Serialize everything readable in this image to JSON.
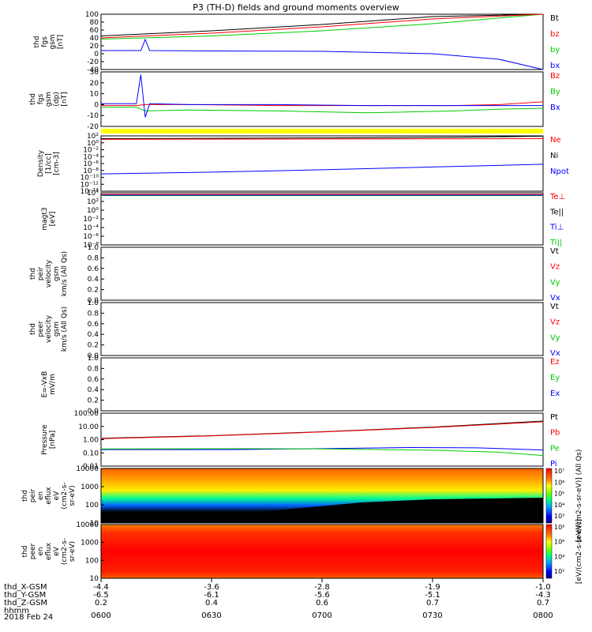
{
  "title": "P3 (TH-D) fields and ground moments overview",
  "date_label": "2018 Feb 24",
  "colors": {
    "black": "#000000",
    "red": "#ff0000",
    "green": "#00cc00",
    "blue": "#0000ff",
    "yellow": "#ffff00"
  },
  "time_axis": {
    "ticks": [
      "0600",
      "0630",
      "0700",
      "0730",
      "0800"
    ],
    "ephemeris_rows": [
      {
        "label": "thd_X-GSM",
        "values": [
          "-4.4",
          "-3.6",
          "-2.8",
          "-1.9",
          "-1.0"
        ]
      },
      {
        "label": "thd_Y-GSM",
        "values": [
          "-6.5",
          "-6.1",
          "-5.6",
          "-5.1",
          "-4.3"
        ]
      },
      {
        "label": "thd_Z-GSM",
        "values": [
          "0.2",
          "0.4",
          "0.6",
          "0.7",
          "0.7"
        ]
      },
      {
        "label": "hhmm",
        "values": []
      }
    ]
  },
  "chart_data": [
    {
      "type": "line",
      "ylabel": [
        "thd",
        "fgs",
        "gsm",
        "[nT]"
      ],
      "ticks": [
        "100",
        "80",
        "60",
        "40",
        "20",
        "0",
        "-20",
        "-40"
      ],
      "ylim": [
        -40,
        100
      ],
      "legend": [
        {
          "label": "Bt",
          "color": "#000000"
        },
        {
          "label": "bz",
          "color": "#ff0000"
        },
        {
          "label": "by",
          "color": "#00cc00"
        },
        {
          "label": "bx",
          "color": "#0000ff"
        }
      ],
      "series": [
        {
          "name": "Bt",
          "color": "#000000",
          "x": [
            0,
            0.25,
            0.5,
            0.75,
            1
          ],
          "values": [
            45,
            58,
            74,
            94,
            118
          ]
        },
        {
          "name": "by",
          "color": "#00cc00",
          "x": [
            0,
            0.25,
            0.5,
            0.75,
            1
          ],
          "values": [
            37,
            45,
            58,
            76,
            100
          ]
        },
        {
          "name": "bz",
          "color": "#ff0000",
          "x": [
            0,
            0.25,
            0.5,
            0.75,
            1
          ],
          "values": [
            40,
            52,
            68,
            88,
            112
          ]
        },
        {
          "name": "bx",
          "color": "#0000ff",
          "x": [
            0,
            0.09,
            0.1,
            0.11,
            0.25,
            0.5,
            0.75,
            0.9,
            1
          ],
          "values": [
            8,
            8,
            36,
            8,
            7,
            6,
            0,
            -14,
            -40
          ]
        }
      ]
    },
    {
      "type": "line",
      "ylabel": [
        "thd",
        "fgs",
        "gsm",
        "(dp)",
        "[nT]"
      ],
      "ticks": [
        "30",
        "20",
        "10",
        "0",
        "-10",
        "-20"
      ],
      "ylim": [
        -25,
        35
      ],
      "legend": [
        {
          "label": "Bz",
          "color": "#ff0000"
        },
        {
          "label": "By",
          "color": "#00cc00"
        },
        {
          "label": "Bx",
          "color": "#0000ff"
        }
      ],
      "series": [
        {
          "name": "By",
          "color": "#00cc00",
          "x": [
            0,
            0.08,
            0.1,
            0.2,
            0.4,
            0.6,
            0.8,
            0.9,
            1
          ],
          "values": [
            -4,
            -4,
            -8,
            -7,
            -8,
            -10,
            -8,
            -6,
            -5
          ]
        },
        {
          "name": "Bz",
          "color": "#ff0000",
          "x": [
            0,
            0.08,
            0.1,
            0.2,
            0.4,
            0.6,
            0.8,
            0.9,
            1
          ],
          "values": [
            -2,
            -2,
            -1,
            -1,
            -2,
            -2,
            -2,
            -1,
            2
          ]
        },
        {
          "name": "Bx",
          "color": "#0000ff",
          "x": [
            0,
            0.08,
            0.09,
            0.1,
            0.11,
            0.2,
            0.4,
            0.6,
            0.8,
            1
          ],
          "values": [
            0,
            0,
            32,
            -15,
            0,
            -1,
            -1,
            -2,
            -2,
            -2
          ]
        }
      ]
    },
    {
      "type": "line",
      "ylabel": [
        "Density",
        "[1/cc]",
        "[cm-3]"
      ],
      "ticks": [
        "10²",
        "10⁰",
        "10⁻²",
        "10⁻⁴",
        "10⁻⁶",
        "10⁻⁸",
        "10⁻¹⁰",
        "10⁻¹²",
        "10⁻¹⁴"
      ],
      "log": true,
      "ylim": [
        -14,
        2
      ],
      "legend": [
        {
          "label": "Ne",
          "color": "#ff0000"
        },
        {
          "label": "Ni",
          "color": "#000000"
        },
        {
          "label": "Npot",
          "color": "#0000ff"
        }
      ],
      "series": [
        {
          "name": "Ni",
          "color": "#000000",
          "x": [
            0,
            0.5,
            0.8,
            1
          ],
          "values": [
            1.2,
            1.4,
            1.6,
            1.9
          ]
        },
        {
          "name": "Ne",
          "color": "#ff0000",
          "x": [
            0,
            0.5,
            1
          ],
          "values": [
            1.0,
            1.1,
            1.2
          ]
        },
        {
          "name": "Npot",
          "color": "#0000ff",
          "x": [
            0,
            0.25,
            0.5,
            0.75,
            1
          ],
          "values": [
            -9,
            -8.5,
            -7.8,
            -7.0,
            -6.2
          ]
        }
      ]
    },
    {
      "type": "line",
      "ylabel": [
        "magt3",
        "[eV]"
      ],
      "ticks": [
        "10⁴",
        "10²",
        "10⁰",
        "10⁻²",
        "10⁻⁴",
        "10⁻⁶",
        "10⁻⁸"
      ],
      "log": true,
      "ylim": [
        -9,
        4
      ],
      "legend": [
        {
          "label": "Te⊥",
          "color": "#ff0000"
        },
        {
          "label": "Te||",
          "color": "#000000"
        },
        {
          "label": "Ti⊥",
          "color": "#0000ff"
        },
        {
          "label": "Ti||",
          "color": "#00cc00"
        }
      ],
      "series": [
        {
          "name": "Te||",
          "color": "#000000",
          "x": [
            0,
            1
          ],
          "values": [
            3.5,
            3.5
          ]
        },
        {
          "name": "Ti||",
          "color": "#00cc00",
          "x": [
            0,
            1
          ],
          "values": [
            3.3,
            3.3
          ]
        },
        {
          "name": "Ti⊥",
          "color": "#0000ff",
          "x": [
            0,
            1
          ],
          "values": [
            3.4,
            3.4
          ]
        },
        {
          "name": "Te⊥",
          "color": "#ff0000",
          "x": [
            0,
            1
          ],
          "values": [
            3.6,
            3.6
          ]
        }
      ]
    },
    {
      "type": "line",
      "ylabel": [
        "thd",
        "peir",
        "velocity",
        "gsm",
        "km/s (All Qs)"
      ],
      "ticks": [
        "1.0",
        "0.8",
        "0.6",
        "0.4",
        "0.2",
        "0.0"
      ],
      "ylim": [
        0,
        1
      ],
      "legend": [
        {
          "label": "Vt",
          "color": "#000000"
        },
        {
          "label": "Vz",
          "color": "#ff0000"
        },
        {
          "label": "Vy",
          "color": "#00cc00"
        },
        {
          "label": "Vx",
          "color": "#0000ff"
        }
      ],
      "series": []
    },
    {
      "type": "line",
      "ylabel": [
        "thd",
        "peer",
        "velocity",
        "gsm",
        "km/s (All Qs)"
      ],
      "ticks": [
        "1.0",
        "0.8",
        "0.6",
        "0.4",
        "0.2",
        "0.0"
      ],
      "ylim": [
        0,
        1
      ],
      "legend": [
        {
          "label": "Vt",
          "color": "#000000"
        },
        {
          "label": "Vz",
          "color": "#ff0000"
        },
        {
          "label": "Vy",
          "color": "#00cc00"
        },
        {
          "label": "Vx",
          "color": "#0000ff"
        }
      ],
      "series": []
    },
    {
      "type": "line",
      "ylabel": [
        "E=-VxB",
        "mV/m"
      ],
      "ticks": [
        "1.0",
        "0.8",
        "0.6",
        "0.4",
        "0.2",
        "0.0"
      ],
      "ylim": [
        0,
        1
      ],
      "legend": [
        {
          "label": "Ez",
          "color": "#ff0000"
        },
        {
          "label": "Ey",
          "color": "#00cc00"
        },
        {
          "label": "Ex",
          "color": "#0000ff"
        }
      ],
      "series": []
    },
    {
      "type": "line",
      "ylabel": [
        "Pressure",
        "[nPa]"
      ],
      "ticks": [
        "100.00",
        "10.00",
        "1.00",
        "0.10",
        "0.01"
      ],
      "log": true,
      "ylim": [
        -2,
        2
      ],
      "legend": [
        {
          "label": "Pt",
          "color": "#000000"
        },
        {
          "label": "Pb",
          "color": "#ff0000"
        },
        {
          "label": "Pe",
          "color": "#00cc00"
        },
        {
          "label": "Pi",
          "color": "#0000ff"
        }
      ],
      "series": [
        {
          "name": "Pt",
          "color": "#000000",
          "x": [
            0,
            0.25,
            0.5,
            0.75,
            1
          ],
          "values": [
            0.1,
            0.3,
            0.6,
            0.95,
            1.4
          ]
        },
        {
          "name": "Pb",
          "color": "#ff0000",
          "x": [
            0,
            0.25,
            0.5,
            0.75,
            1
          ],
          "values": [
            0.08,
            0.28,
            0.58,
            0.92,
            1.35
          ]
        },
        {
          "name": "Pi",
          "color": "#0000ff",
          "x": [
            0,
            0.3,
            0.5,
            0.7,
            0.85,
            1
          ],
          "values": [
            -0.75,
            -0.75,
            -0.68,
            -0.6,
            -0.62,
            -0.78
          ]
        },
        {
          "name": "Pe",
          "color": "#00cc00",
          "x": [
            0,
            0.3,
            0.5,
            0.75,
            0.9,
            1
          ],
          "values": [
            -0.7,
            -0.68,
            -0.7,
            -0.8,
            -0.95,
            -1.2
          ]
        }
      ]
    },
    {
      "type": "heatmap",
      "ylabel": [
        "thd",
        "peir",
        "en",
        "eflux",
        "eV",
        "(cm2-s-",
        "sr-eV)"
      ],
      "ticks": [
        "10000",
        "1000",
        "100",
        "10"
      ],
      "log": true,
      "ylim": [
        0.8,
        4.3
      ],
      "colorbar": {
        "ticks": [
          "10⁷",
          "10⁶",
          "10⁵",
          "10⁴",
          "10³"
        ],
        "label": "[eV/(cm2-s-sr-eV)] (All Qs)"
      }
    },
    {
      "type": "heatmap",
      "ylabel": [
        "thd",
        "peer",
        "en",
        "eflux",
        "eV",
        "(cm2-s-",
        "sr-eV)"
      ],
      "ticks": [
        "10000",
        "1000",
        "100",
        "10"
      ],
      "log": true,
      "ylim": [
        0.8,
        4.3
      ],
      "colorbar": {
        "ticks": [
          "10⁸",
          "10⁶",
          "10⁴",
          "10²"
        ],
        "label": "[eV/(cm2-s-sr-eV)]"
      }
    }
  ]
}
